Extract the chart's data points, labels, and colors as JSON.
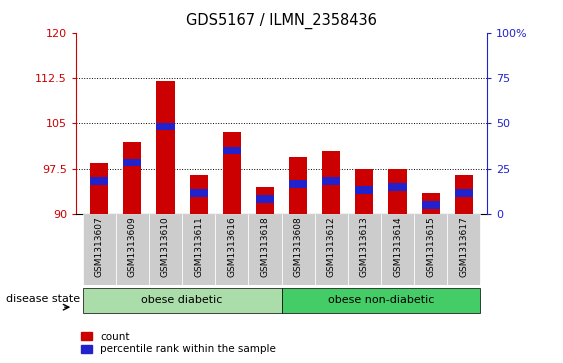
{
  "title": "GDS5167 / ILMN_2358436",
  "samples": [
    "GSM1313607",
    "GSM1313609",
    "GSM1313610",
    "GSM1313611",
    "GSM1313616",
    "GSM1313618",
    "GSM1313608",
    "GSM1313612",
    "GSM1313613",
    "GSM1313614",
    "GSM1313615",
    "GSM1313617"
  ],
  "bar_heights": [
    98.5,
    102.0,
    112.0,
    96.5,
    103.5,
    94.5,
    99.5,
    100.5,
    97.5,
    97.5,
    93.5,
    96.5
  ],
  "blue_marker_pos": [
    95.5,
    98.5,
    104.5,
    93.5,
    100.5,
    92.5,
    95.0,
    95.5,
    94.0,
    94.5,
    91.5,
    93.5
  ],
  "ymin": 90,
  "ymax": 120,
  "yticks": [
    90,
    97.5,
    105,
    112.5,
    120
  ],
  "ytick_labels": [
    "90",
    "97.5",
    "105",
    "112.5",
    "120"
  ],
  "right_yticks": [
    0,
    25,
    50,
    75,
    100
  ],
  "right_ytick_labels": [
    "0",
    "25",
    "50",
    "75",
    "100%"
  ],
  "bar_color": "#cc0000",
  "blue_color": "#2222cc",
  "group1_label": "obese diabetic",
  "group2_label": "obese non-diabetic",
  "group1_count": 6,
  "group2_count": 6,
  "group1_bg": "#aaddaa",
  "group2_bg": "#44cc66",
  "xlabel_left": "disease state",
  "legend_count_label": "count",
  "legend_pct_label": "percentile rank within the sample",
  "bar_width": 0.55,
  "title_fontsize": 10.5,
  "tick_fontsize": 8,
  "sample_fontsize": 6.5,
  "left_axis_color": "#cc0000",
  "right_axis_color": "#2222cc",
  "dotted_yticks": [
    97.5,
    105.0,
    112.5
  ],
  "xtick_bg": "#cccccc",
  "blue_bar_height": 1.2
}
